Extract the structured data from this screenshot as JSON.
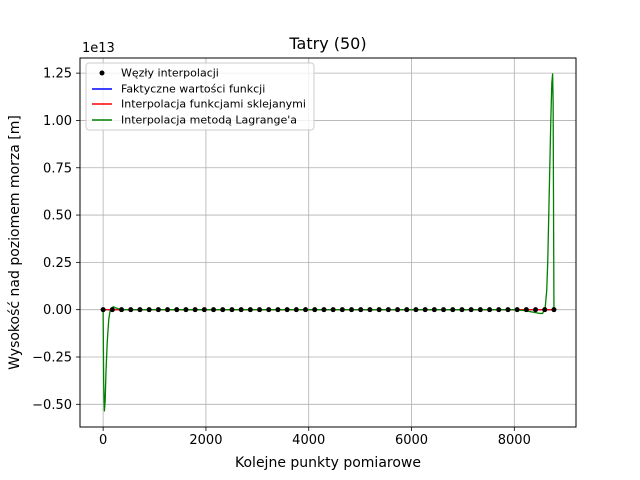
{
  "chart_data": {
    "type": "line",
    "title": "Tatry (50)",
    "xlabel": "Kolejne punkty pomiarowe",
    "ylabel": "Wysokość nad poziomem morza [m]",
    "y_offset_label": "1e13",
    "xlim": [
      -450,
      9200
    ],
    "ylim": [
      -0.62,
      1.33
    ],
    "y_scale_note": "values in units of 1e13",
    "x_ticks": [
      0,
      2000,
      4000,
      6000,
      8000
    ],
    "x_tick_labels": [
      "0",
      "2000",
      "4000",
      "6000",
      "8000"
    ],
    "y_ticks": [
      -0.5,
      -0.25,
      0.0,
      0.25,
      0.5,
      0.75,
      1.0,
      1.25
    ],
    "y_tick_labels": [
      "−0.50",
      "−0.25",
      "0.00",
      "0.25",
      "0.50",
      "0.75",
      "1.00",
      "1.25"
    ],
    "grid": true,
    "legend_position": "top-left",
    "series": [
      {
        "name": "Węzły interpolacji",
        "kind": "scatter",
        "color": "#000000",
        "x": [
          0,
          179,
          358,
          537,
          716,
          895,
          1074,
          1253,
          1432,
          1611,
          1790,
          1969,
          2148,
          2327,
          2506,
          2685,
          2864,
          3043,
          3222,
          3401,
          3580,
          3759,
          3938,
          4117,
          4296,
          4475,
          4654,
          4833,
          5012,
          5191,
          5370,
          5549,
          5728,
          5907,
          6086,
          6265,
          6444,
          6623,
          6802,
          6981,
          7160,
          7339,
          7518,
          7697,
          7876,
          8055,
          8234,
          8413,
          8592,
          8771
        ],
        "y": [
          0,
          0,
          0,
          0,
          0,
          0,
          0,
          0,
          0,
          0,
          0,
          0,
          0,
          0,
          0,
          0,
          0,
          0,
          0,
          0,
          0,
          0,
          0,
          0,
          0,
          0,
          0,
          0,
          0,
          0,
          0,
          0,
          0,
          0,
          0,
          0,
          0,
          0,
          0,
          0,
          0,
          0,
          0,
          0,
          0,
          0,
          0,
          0,
          0,
          0
        ]
      },
      {
        "name": "Faktyczne wartości funkcji",
        "kind": "line",
        "color": "#0000ff",
        "x": [
          0,
          8771
        ],
        "y": [
          0,
          0
        ]
      },
      {
        "name": "Interpolacja funkcjami sklejanymi",
        "kind": "line",
        "color": "#ff0000",
        "x": [
          0,
          8771
        ],
        "y": [
          0,
          0
        ]
      },
      {
        "name": "Interpolacja metodą Lagrange'a",
        "kind": "line",
        "color": "#008000",
        "x": [
          0,
          10,
          25,
          40,
          55,
          80,
          110,
          140,
          170,
          200,
          230,
          260,
          300,
          400,
          600,
          800,
          1000,
          2000,
          3000,
          4000,
          5000,
          6000,
          7000,
          8000,
          8200,
          8400,
          8500,
          8550,
          8600,
          8630,
          8650,
          8670,
          8690,
          8710,
          8730,
          8745,
          8755,
          8762,
          8771
        ],
        "y": [
          0,
          -0.38,
          -0.535,
          -0.48,
          -0.33,
          -0.17,
          -0.05,
          0.0,
          0.01,
          0.015,
          0.012,
          0.008,
          0.004,
          0.0,
          0.0,
          0.0,
          0.0,
          0.0,
          0.0,
          0.0,
          0.0,
          0.0,
          0.0,
          0.0,
          -0.005,
          -0.015,
          -0.02,
          -0.02,
          0.01,
          0.1,
          0.25,
          0.5,
          0.75,
          1.0,
          1.2,
          1.245,
          1.1,
          0.6,
          0
        ]
      }
    ]
  }
}
